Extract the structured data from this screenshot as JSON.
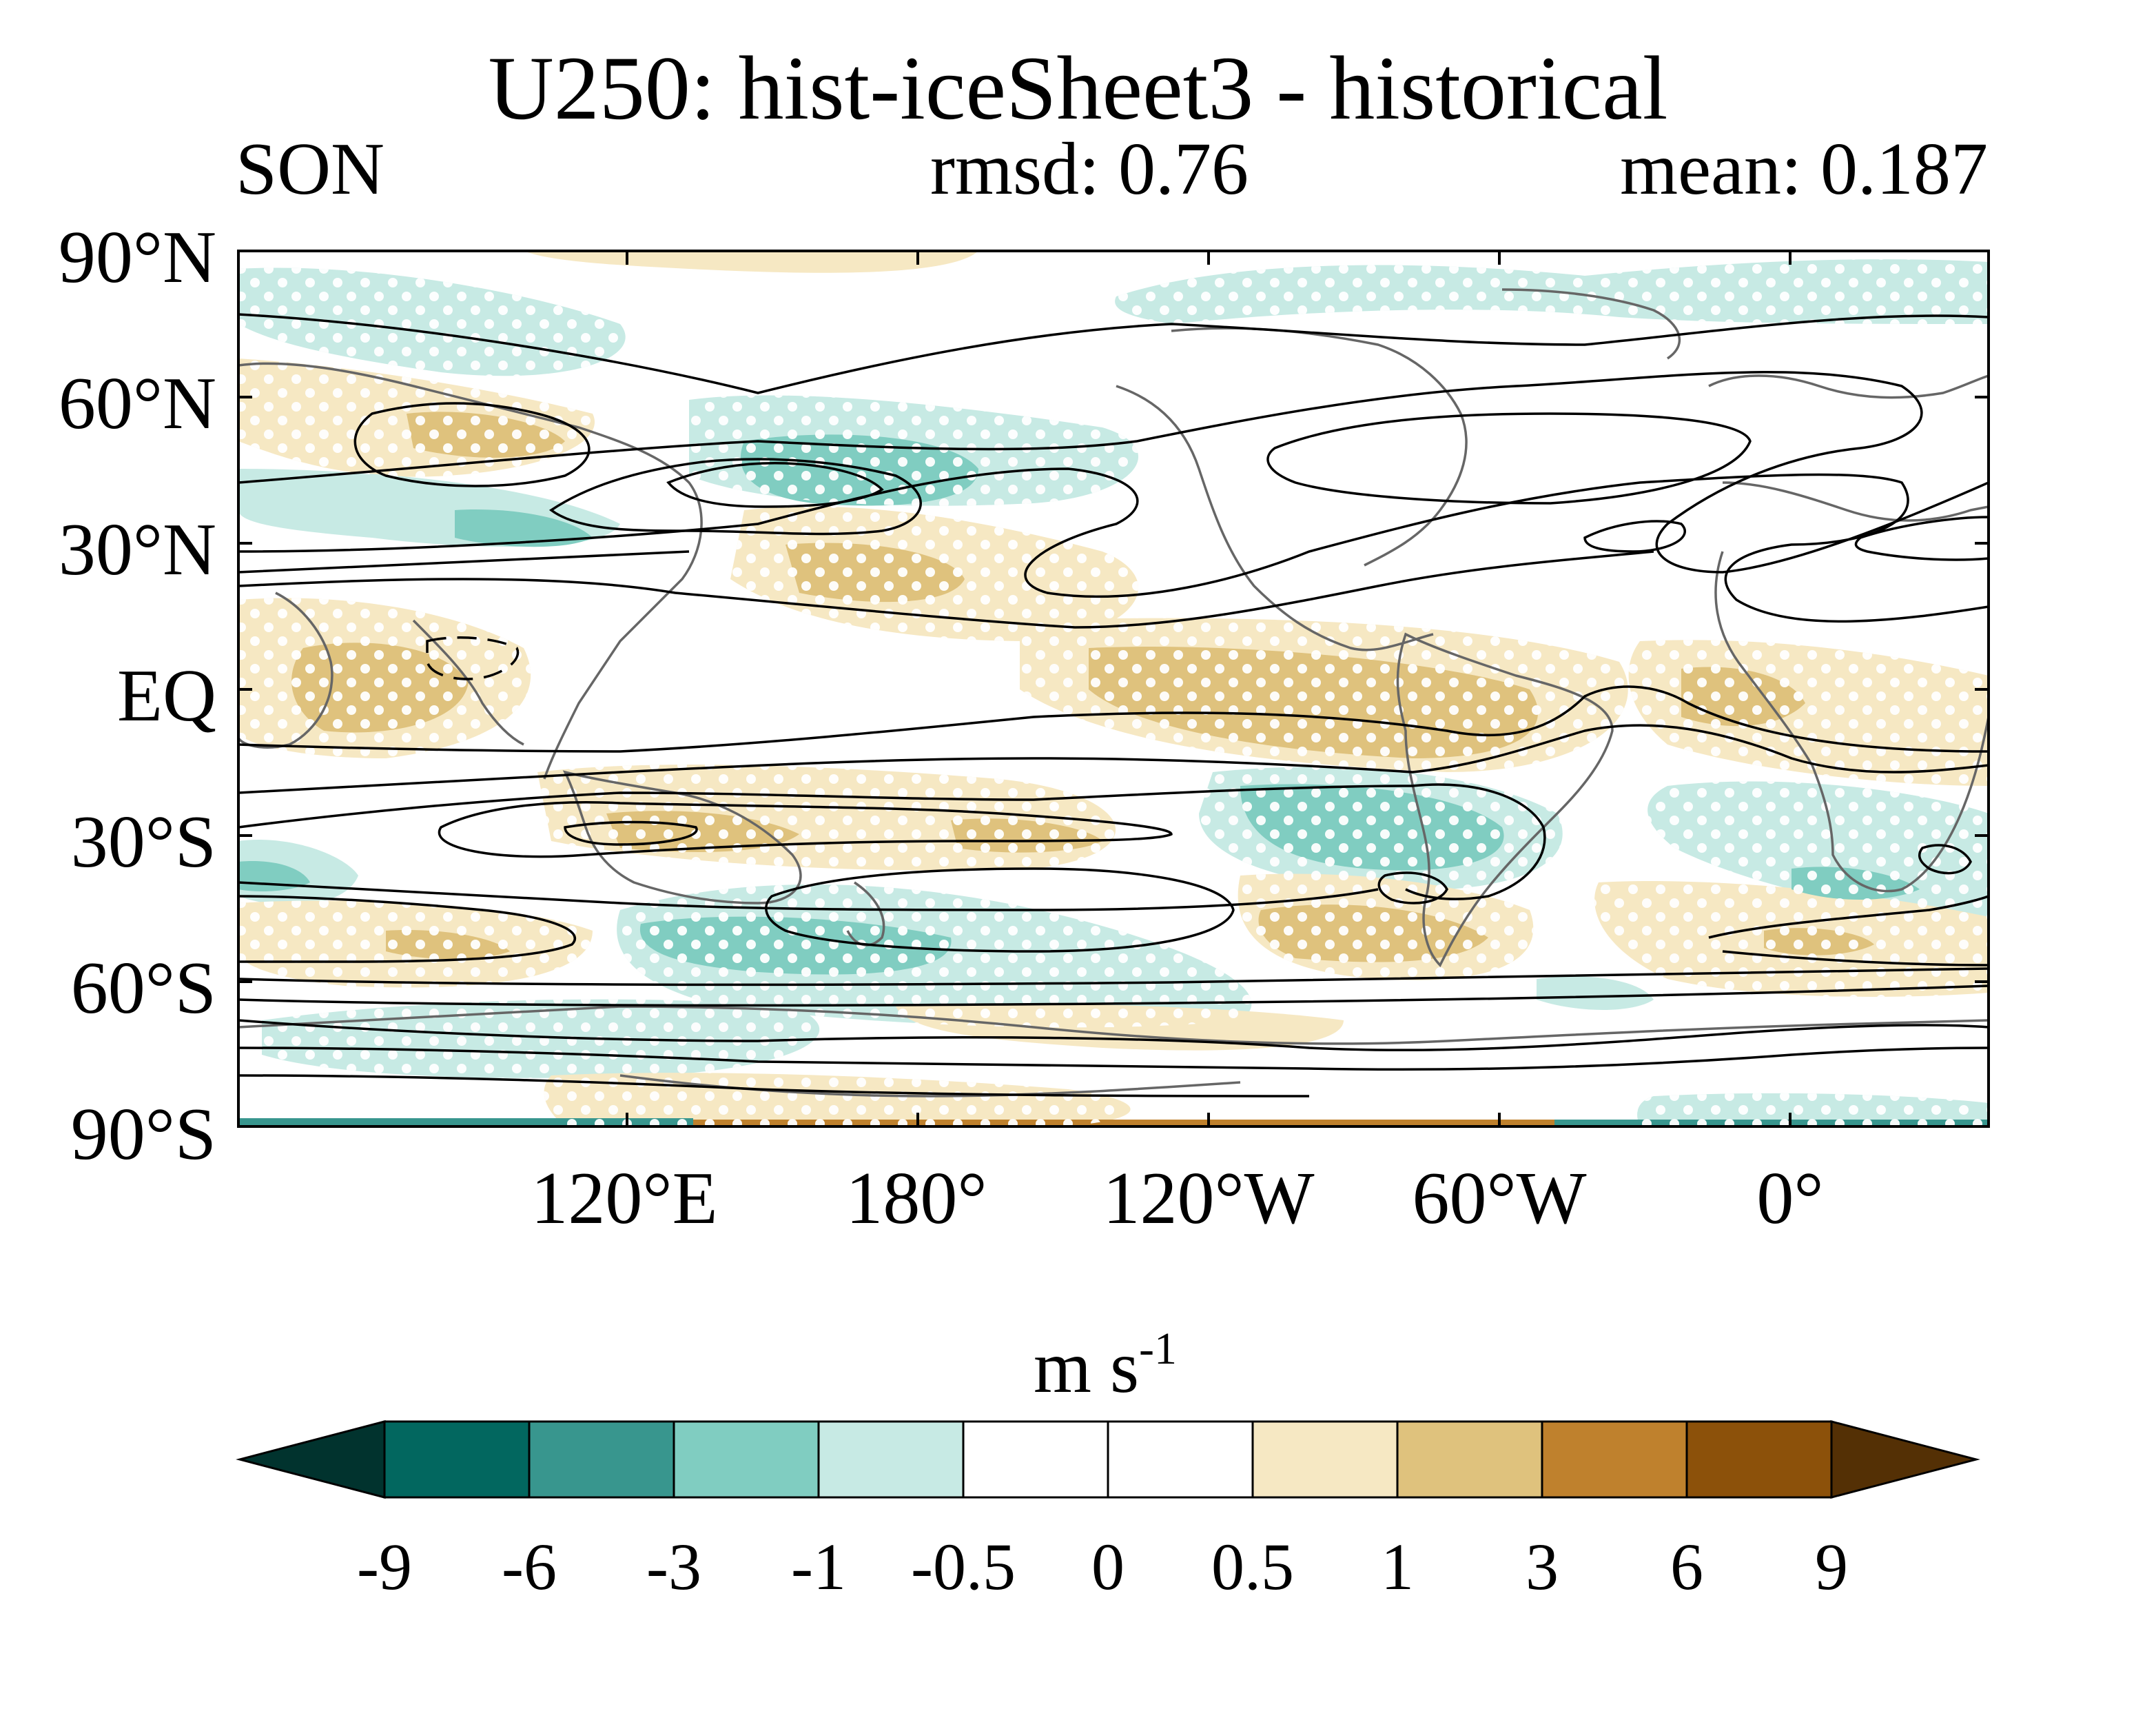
{
  "title": "U250: hist-iceSheet3 - historical",
  "season": "SON",
  "rmsd": "rmsd: 0.76",
  "mean": "mean: 0.187",
  "units": {
    "base": "m s",
    "exponent": "-1"
  },
  "map": {
    "lat_labels": [
      "90°N",
      "60°N",
      "30°N",
      "EQ",
      "30°S",
      "60°S",
      "90°S"
    ],
    "lon_labels": [
      "120°E",
      "180°",
      "120°W",
      "60°W",
      "0°"
    ],
    "projection": "cylindrical equidistant, centered near 150°W",
    "fill_field": "U250 difference (hist-iceSheet3 minus historical)",
    "contours": "historical climatology U250, solid positive, dashed negative",
    "stippling": "white dots mark significant differences"
  },
  "colorbar": {
    "ticks": [
      "-9",
      "-6",
      "-3",
      "-1",
      "-0.5",
      "0",
      "0.5",
      "1",
      "3",
      "6",
      "9"
    ],
    "colors": [
      "#01332e",
      "#02675f",
      "#38968e",
      "#80cdc1",
      "#c7eae4",
      "#ffffff",
      "#ffffff",
      "#f6e8c3",
      "#dfc27d",
      "#bf812d",
      "#8c510a",
      "#543005"
    ],
    "extend": "both"
  }
}
